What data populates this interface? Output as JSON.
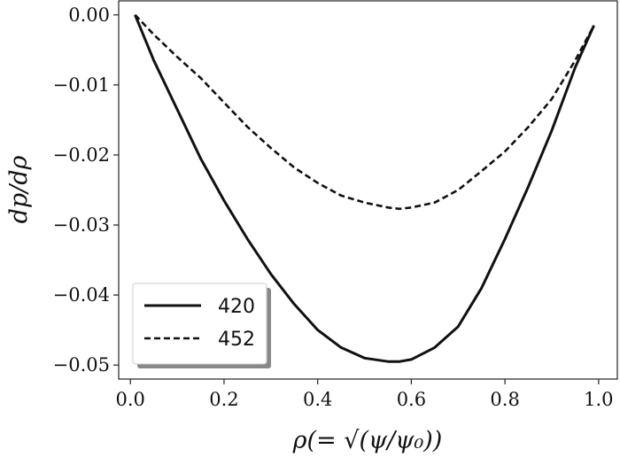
{
  "chart_data": {
    "type": "line",
    "xlabel": "ρ(= √(ψ/ψ₀))",
    "ylabel": "dp/dρ",
    "xlim": [
      -0.025,
      1.04
    ],
    "ylim": [
      -0.052,
      0.002
    ],
    "xticks": [
      0.0,
      0.2,
      0.4,
      0.6,
      0.8,
      1.0
    ],
    "xtick_labels": [
      "0.0",
      "0.2",
      "0.4",
      "0.6",
      "0.8",
      "1.0"
    ],
    "yticks": [
      0.0,
      -0.01,
      -0.02,
      -0.03,
      -0.04,
      -0.05
    ],
    "ytick_labels": [
      "0.00",
      "−0.01",
      "−0.02",
      "−0.03",
      "−0.04",
      "−0.05"
    ],
    "grid": false,
    "legend_position": "lower-left",
    "series": [
      {
        "name": "420",
        "style": "solid",
        "x": [
          0.01,
          0.05,
          0.1,
          0.15,
          0.2,
          0.25,
          0.3,
          0.35,
          0.4,
          0.45,
          0.5,
          0.55,
          0.575,
          0.6,
          0.65,
          0.7,
          0.75,
          0.8,
          0.85,
          0.9,
          0.95,
          0.99
        ],
        "y": [
          0.0,
          -0.0065,
          -0.0135,
          -0.0205,
          -0.0265,
          -0.032,
          -0.037,
          -0.0413,
          -0.045,
          -0.0475,
          -0.049,
          -0.0495,
          -0.0495,
          -0.0492,
          -0.0475,
          -0.0445,
          -0.039,
          -0.032,
          -0.0245,
          -0.0165,
          -0.0075,
          -0.0015
        ]
      },
      {
        "name": "452",
        "style": "dashed",
        "x": [
          0.01,
          0.05,
          0.1,
          0.15,
          0.2,
          0.25,
          0.3,
          0.35,
          0.4,
          0.45,
          0.5,
          0.55,
          0.575,
          0.6,
          0.65,
          0.7,
          0.75,
          0.8,
          0.85,
          0.9,
          0.95,
          0.99
        ],
        "y": [
          0.0,
          -0.0028,
          -0.006,
          -0.009,
          -0.0125,
          -0.016,
          -0.019,
          -0.0218,
          -0.024,
          -0.0258,
          -0.0268,
          -0.0275,
          -0.0277,
          -0.0275,
          -0.0268,
          -0.025,
          -0.0223,
          -0.0195,
          -0.016,
          -0.012,
          -0.0065,
          -0.0015
        ]
      }
    ]
  }
}
